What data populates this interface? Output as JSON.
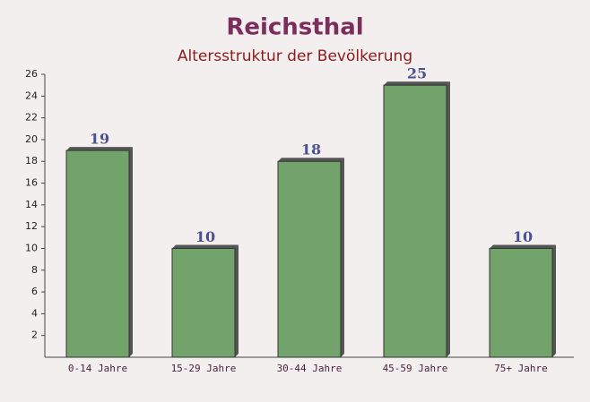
{
  "chart_data": {
    "type": "bar",
    "title": "Reichsthal",
    "subtitle": "Altersstruktur der Bevölkerung",
    "categories": [
      "0-14 Jahre",
      "15-29 Jahre",
      "30-44 Jahre",
      "45-59 Jahre",
      "75+ Jahre"
    ],
    "values": [
      19,
      10,
      18,
      25,
      10
    ],
    "color": "#6a9e62",
    "ylim": [
      0,
      26
    ],
    "yticks": [
      2,
      4,
      6,
      8,
      10,
      12,
      14,
      16,
      18,
      20,
      22,
      24,
      26
    ]
  }
}
